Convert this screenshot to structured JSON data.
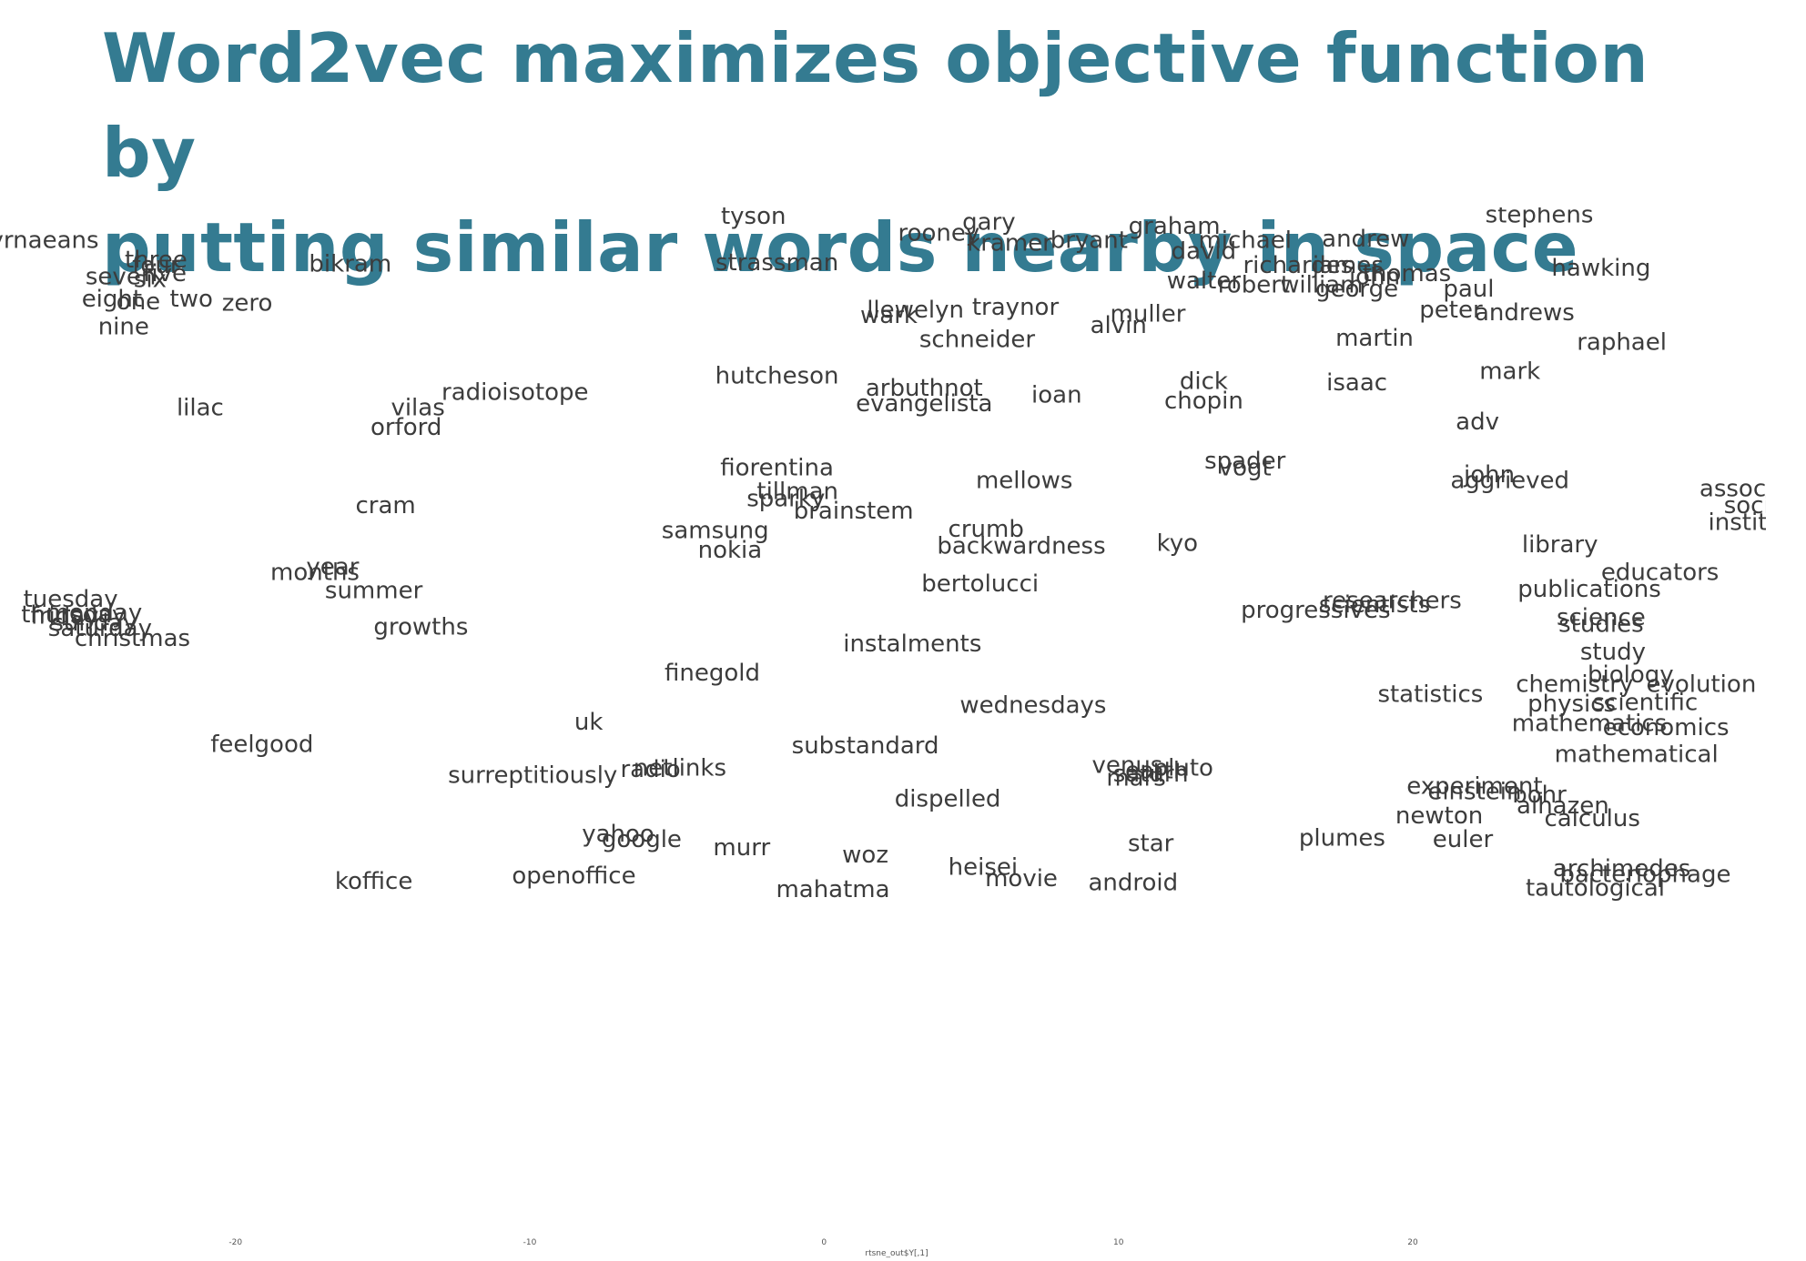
{
  "title": {
    "line1": "Word2vec maximizes objective function by",
    "line2": "putting similar words nearby in space"
  },
  "colors": {
    "title": "#347b91",
    "words": "#3c3c3c",
    "background": "#ffffff"
  },
  "chart_data": {
    "type": "scatter",
    "xlabel": "rtsne_out$Y[,1]",
    "ylabel": "",
    "grid": false,
    "xlim": [
      -28,
      32
    ],
    "ylim": [
      -37,
      37
    ],
    "x_ticks": [
      {
        "value": -20,
        "label": "-20"
      },
      {
        "value": -10,
        "label": "-10"
      },
      {
        "value": 0,
        "label": "0"
      },
      {
        "value": 10,
        "label": "10"
      },
      {
        "value": 20,
        "label": "20"
      }
    ],
    "points": [
      {
        "label": "tyson",
        "x": -2.4,
        "y": 36.3
      },
      {
        "label": "stephens",
        "x": 24.3,
        "y": 36.4
      },
      {
        "label": "smyrnaeans",
        "x": -27.1,
        "y": 34.6
      },
      {
        "label": "rooney",
        "x": 3.9,
        "y": 35.1
      },
      {
        "label": "gary",
        "x": 5.6,
        "y": 35.9
      },
      {
        "label": "kramer",
        "x": 6.3,
        "y": 34.4
      },
      {
        "label": "bryant",
        "x": 9.0,
        "y": 34.6
      },
      {
        "label": "graham",
        "x": 11.9,
        "y": 35.6
      },
      {
        "label": "michael",
        "x": 14.3,
        "y": 34.6
      },
      {
        "label": "andrew",
        "x": 18.4,
        "y": 34.7
      },
      {
        "label": "david",
        "x": 12.9,
        "y": 33.8
      },
      {
        "label": "richardes",
        "x": 16.1,
        "y": 32.8
      },
      {
        "label": "james",
        "x": 17.8,
        "y": 32.8
      },
      {
        "label": "thomas",
        "x": 19.8,
        "y": 32.2
      },
      {
        "label": "john",
        "x": 18.7,
        "y": 32.0
      },
      {
        "label": "walter",
        "x": 12.9,
        "y": 31.7
      },
      {
        "label": "robert",
        "x": 14.6,
        "y": 31.4
      },
      {
        "label": "william",
        "x": 16.9,
        "y": 31.4
      },
      {
        "label": "george",
        "x": 18.1,
        "y": 31.1
      },
      {
        "label": "paul",
        "x": 21.9,
        "y": 31.1
      },
      {
        "label": "hawking",
        "x": 26.4,
        "y": 32.6
      },
      {
        "label": "three",
        "x": -22.7,
        "y": 33.2
      },
      {
        "label": "four",
        "x": -22.7,
        "y": 32.8
      },
      {
        "label": "seven",
        "x": -23.9,
        "y": 32.0
      },
      {
        "label": "five",
        "x": -22.4,
        "y": 32.2
      },
      {
        "label": "six",
        "x": -22.9,
        "y": 31.8
      },
      {
        "label": "bikram",
        "x": -16.1,
        "y": 32.9
      },
      {
        "label": "strassman",
        "x": -1.6,
        "y": 33.0
      },
      {
        "label": "eight",
        "x": -24.2,
        "y": 30.4
      },
      {
        "label": "one",
        "x": -23.3,
        "y": 30.2
      },
      {
        "label": "two",
        "x": -21.5,
        "y": 30.4
      },
      {
        "label": "zero",
        "x": -19.6,
        "y": 30.1
      },
      {
        "label": "nine",
        "x": -23.8,
        "y": 28.4
      },
      {
        "label": "llewelyn",
        "x": 3.1,
        "y": 29.6
      },
      {
        "label": "wark",
        "x": 2.2,
        "y": 29.2
      },
      {
        "label": "traynor",
        "x": 6.5,
        "y": 29.8
      },
      {
        "label": "muller",
        "x": 11.0,
        "y": 29.3
      },
      {
        "label": "alvin",
        "x": 10.0,
        "y": 28.5
      },
      {
        "label": "peter",
        "x": 21.3,
        "y": 29.6
      },
      {
        "label": "andrews",
        "x": 23.8,
        "y": 29.4
      },
      {
        "label": "schneider",
        "x": 5.2,
        "y": 27.5
      },
      {
        "label": "martin",
        "x": 18.7,
        "y": 27.6
      },
      {
        "label": "raphael",
        "x": 27.1,
        "y": 27.3
      },
      {
        "label": "mark",
        "x": 23.3,
        "y": 25.2
      },
      {
        "label": "hutcheson",
        "x": -1.6,
        "y": 24.9
      },
      {
        "label": "arbuthnot",
        "x": 3.4,
        "y": 24.0
      },
      {
        "label": "evangelista",
        "x": 3.4,
        "y": 22.9
      },
      {
        "label": "ioan",
        "x": 7.9,
        "y": 23.5
      },
      {
        "label": "dick",
        "x": 12.9,
        "y": 24.5
      },
      {
        "label": "chopin",
        "x": 12.9,
        "y": 23.1
      },
      {
        "label": "isaac",
        "x": 18.1,
        "y": 24.4
      },
      {
        "label": "radioisotope",
        "x": -10.5,
        "y": 23.7
      },
      {
        "label": "lilac",
        "x": -21.2,
        "y": 22.6
      },
      {
        "label": "vilas",
        "x": -13.8,
        "y": 22.6
      },
      {
        "label": "orford",
        "x": -14.2,
        "y": 21.2
      },
      {
        "label": "adv",
        "x": 22.2,
        "y": 21.6
      },
      {
        "label": "fiorentina",
        "x": -1.6,
        "y": 18.3
      },
      {
        "label": "spader",
        "x": 14.3,
        "y": 18.8
      },
      {
        "label": "vogt",
        "x": 14.3,
        "y": 18.3
      },
      {
        "label": "john",
        "x": 22.6,
        "y": 17.8
      },
      {
        "label": "aggrieved",
        "x": 23.3,
        "y": 17.4
      },
      {
        "label": "mellows",
        "x": 6.8,
        "y": 17.4
      },
      {
        "label": "tillman",
        "x": -0.9,
        "y": 16.6
      },
      {
        "label": "sparky",
        "x": -1.3,
        "y": 16.1
      },
      {
        "label": "association",
        "x": 32.0,
        "y": 16.8
      },
      {
        "label": "society",
        "x": 32.0,
        "y": 15.6
      },
      {
        "label": "institute",
        "x": 31.7,
        "y": 14.4
      },
      {
        "label": "brainstem",
        "x": 1.0,
        "y": 15.2
      },
      {
        "label": "cram",
        "x": -14.9,
        "y": 15.6
      },
      {
        "label": "samsung",
        "x": -3.7,
        "y": 13.8
      },
      {
        "label": "crumb",
        "x": 5.5,
        "y": 13.9
      },
      {
        "label": "backwardness",
        "x": 6.7,
        "y": 12.7
      },
      {
        "label": "kyo",
        "x": 12.0,
        "y": 12.9
      },
      {
        "label": "library",
        "x": 25.0,
        "y": 12.8
      },
      {
        "label": "nokia",
        "x": -3.2,
        "y": 12.4
      },
      {
        "label": "year",
        "x": -16.7,
        "y": 11.2
      },
      {
        "label": "months",
        "x": -17.3,
        "y": 10.8
      },
      {
        "label": "educators",
        "x": 28.4,
        "y": 10.8
      },
      {
        "label": "bertolucci",
        "x": 5.3,
        "y": 10.0
      },
      {
        "label": "summer",
        "x": -15.3,
        "y": 9.5
      },
      {
        "label": "publications",
        "x": 26.0,
        "y": 9.6
      },
      {
        "label": "tuesday",
        "x": -25.6,
        "y": 8.9
      },
      {
        "label": "thursday",
        "x": -25.5,
        "y": 7.8
      },
      {
        "label": "monday",
        "x": -24.8,
        "y": 7.9
      },
      {
        "label": "friday",
        "x": -25.8,
        "y": 7.7
      },
      {
        "label": "sunday",
        "x": -24.8,
        "y": 7.2
      },
      {
        "label": "saturday",
        "x": -24.6,
        "y": 6.8
      },
      {
        "label": "christmas",
        "x": -23.5,
        "y": 6.1
      },
      {
        "label": "researchers",
        "x": 19.3,
        "y": 8.8
      },
      {
        "label": "scientists",
        "x": 18.7,
        "y": 8.5
      },
      {
        "label": "progressives",
        "x": 16.7,
        "y": 8.1
      },
      {
        "label": "science",
        "x": 26.4,
        "y": 7.6
      },
      {
        "label": "studies",
        "x": 26.4,
        "y": 7.1
      },
      {
        "label": "growths",
        "x": -13.7,
        "y": 6.9
      },
      {
        "label": "instalments",
        "x": 3.0,
        "y": 5.7
      },
      {
        "label": "study",
        "x": 26.8,
        "y": 5.1
      },
      {
        "label": "finegold",
        "x": -3.8,
        "y": 3.6
      },
      {
        "label": "biology",
        "x": 27.4,
        "y": 3.5
      },
      {
        "label": "chemistry",
        "x": 25.5,
        "y": 2.8
      },
      {
        "label": "evolution",
        "x": 29.8,
        "y": 2.8
      },
      {
        "label": "statistics",
        "x": 20.6,
        "y": 2.1
      },
      {
        "label": "physics",
        "x": 25.4,
        "y": 1.4
      },
      {
        "label": "scientific",
        "x": 27.9,
        "y": 1.5
      },
      {
        "label": "wednesdays",
        "x": 7.1,
        "y": 1.3
      },
      {
        "label": "mathematics",
        "x": 26.0,
        "y": 0.0
      },
      {
        "label": "economics",
        "x": 28.6,
        "y": -0.3
      },
      {
        "label": "uk",
        "x": -8.0,
        "y": 0.1
      },
      {
        "label": "feelgood",
        "x": -19.1,
        "y": -1.5
      },
      {
        "label": "substandard",
        "x": 1.4,
        "y": -1.6
      },
      {
        "label": "mathematical",
        "x": 27.6,
        "y": -2.2
      },
      {
        "label": "venus",
        "x": 10.3,
        "y": -3.0
      },
      {
        "label": "pluto",
        "x": 12.2,
        "y": -3.2
      },
      {
        "label": "earth",
        "x": 11.3,
        "y": -3.4
      },
      {
        "label": "saturn",
        "x": 11.1,
        "y": -3.6
      },
      {
        "label": "mars",
        "x": 10.6,
        "y": -3.9
      },
      {
        "label": "netlinks",
        "x": -4.9,
        "y": -3.2
      },
      {
        "label": "radio",
        "x": -5.9,
        "y": -3.3
      },
      {
        "label": "surreptitiously",
        "x": -9.9,
        "y": -3.7
      },
      {
        "label": "experiment",
        "x": 22.1,
        "y": -4.5
      },
      {
        "label": "einstein",
        "x": 22.1,
        "y": -4.9
      },
      {
        "label": "bohr",
        "x": 24.3,
        "y": -5.1
      },
      {
        "label": "dispelled",
        "x": 4.2,
        "y": -5.4
      },
      {
        "label": "alhazen",
        "x": 25.1,
        "y": -5.9
      },
      {
        "label": "newton",
        "x": 20.9,
        "y": -6.6
      },
      {
        "label": "calculus",
        "x": 26.1,
        "y": -6.8
      },
      {
        "label": "yahoo",
        "x": -7.0,
        "y": -7.9
      },
      {
        "label": "google",
        "x": -6.2,
        "y": -8.3
      },
      {
        "label": "plumes",
        "x": 17.6,
        "y": -8.2
      },
      {
        "label": "euler",
        "x": 21.7,
        "y": -8.3
      },
      {
        "label": "star",
        "x": 11.1,
        "y": -8.6
      },
      {
        "label": "murr",
        "x": -2.8,
        "y": -8.9
      },
      {
        "label": "woz",
        "x": 1.4,
        "y": -9.4
      },
      {
        "label": "heisei",
        "x": 5.4,
        "y": -10.3
      },
      {
        "label": "archimedes",
        "x": 27.1,
        "y": -10.4
      },
      {
        "label": "bacteriophage",
        "x": 27.9,
        "y": -10.8
      },
      {
        "label": "openoffice",
        "x": -8.5,
        "y": -10.9
      },
      {
        "label": "movie",
        "x": 6.7,
        "y": -11.1
      },
      {
        "label": "koffice",
        "x": -15.3,
        "y": -11.3
      },
      {
        "label": "android",
        "x": 10.5,
        "y": -11.4
      },
      {
        "label": "mahatma",
        "x": 0.3,
        "y": -11.9
      },
      {
        "label": "tautological",
        "x": 26.2,
        "y": -11.8
      }
    ]
  }
}
